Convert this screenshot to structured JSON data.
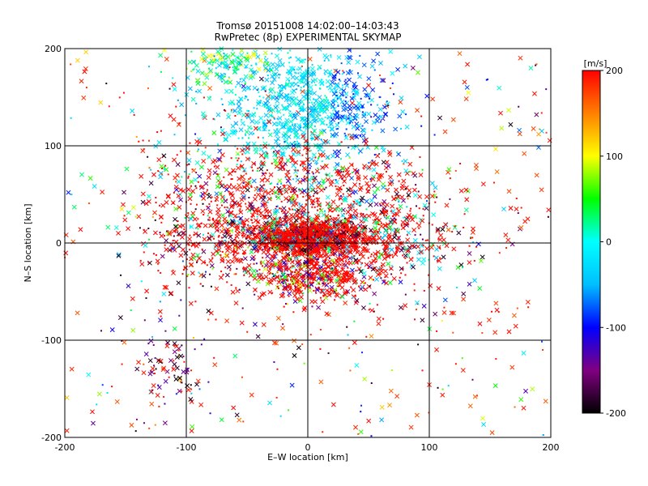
{
  "chart_data": {
    "type": "scatter",
    "title": [
      "Tromsø 20151008 14:02:00–14:03:43",
      "RwPretec (8p) EXPERIMENTAL SKYMAP"
    ],
    "xlabel": "E–W location [km]",
    "ylabel": "N–S location [km]",
    "xlim": [
      -200,
      200
    ],
    "ylim": [
      -200,
      200
    ],
    "xticks": [
      -200,
      -100,
      0,
      100,
      200
    ],
    "yticks": [
      -200,
      -100,
      0,
      100,
      200
    ],
    "grid": true,
    "colorbar": {
      "label": "[m/s]",
      "range": [
        -200,
        200
      ],
      "ticks": [
        200,
        100,
        0,
        -100,
        -200
      ],
      "colormap": [
        "#000000",
        "#800080",
        "#0000ff",
        "#00bfff",
        "#00ffff",
        "#00ff00",
        "#ffff00",
        "#ff8000",
        "#ff0000"
      ]
    },
    "markers": [
      "x",
      "dot"
    ],
    "clusters": [
      {
        "region": "center",
        "x": [
          -20,
          20
        ],
        "y": [
          -5,
          15
        ],
        "velocity_dominant": 200,
        "density": "very high"
      },
      {
        "region": "north",
        "x": [
          -80,
          60
        ],
        "y": [
          60,
          200
        ],
        "velocity_mixed": [
          -100,
          0
        ],
        "density": "high"
      },
      {
        "region": "south-center",
        "x": [
          -40,
          40
        ],
        "y": [
          -60,
          -15
        ],
        "velocity_dominant": 200,
        "density": "medium"
      },
      {
        "region": "southwest",
        "x": [
          -140,
          -90
        ],
        "y": [
          -160,
          -100
        ],
        "velocity_mixed": [
          -200,
          -100
        ],
        "density": "low"
      },
      {
        "region": "scattered",
        "x": [
          -200,
          200
        ],
        "y": [
          -200,
          200
        ],
        "velocity_mixed": [
          -200,
          200
        ],
        "density": "low"
      }
    ]
  }
}
